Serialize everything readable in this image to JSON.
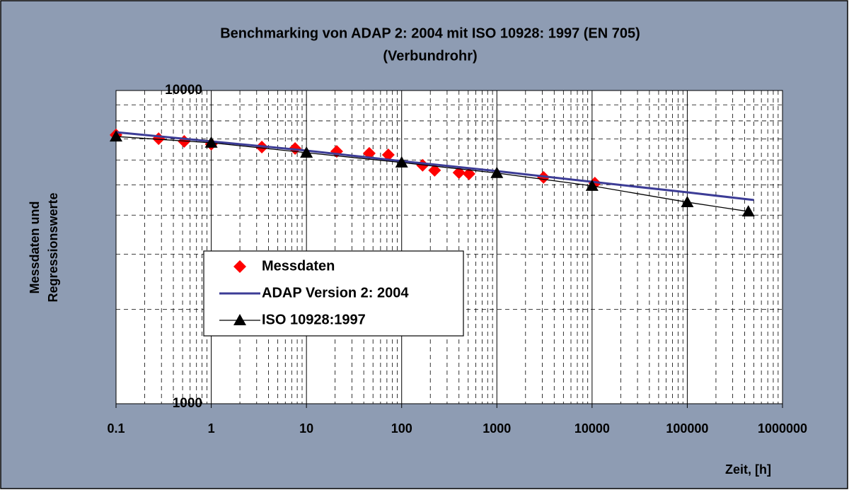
{
  "chart_data": {
    "type": "line",
    "title": "Benchmarking von ADAP 2: 2004 mit ISO 10928: 1997 (EN 705)",
    "subtitle": "(Verbundrohr)",
    "x_label": "Zeit, [h]",
    "y_label": [
      "Messdaten und",
      "Regressionswerte"
    ],
    "x_log": true,
    "y_log": true,
    "grid": true,
    "minor_grid": true,
    "legend": "center-left",
    "xlim": [
      0.1,
      1000000
    ],
    "xticks": [
      0.1,
      1,
      10,
      100,
      1000,
      10000,
      100000,
      1000000
    ],
    "ylim": [
      1000,
      10000
    ],
    "yticks": [
      1000,
      10000
    ],
    "series": [
      {
        "name": "Messdaten",
        "kind": "markers",
        "marker": "diamond",
        "color": "#ff0000",
        "x": [
          0.1,
          0.28,
          0.52,
          1,
          3.4,
          7.6,
          20.8,
          45.7,
          72.4,
          166,
          222,
          400,
          510,
          3090,
          10700
        ],
        "values": [
          7210,
          7020,
          6880,
          6740,
          6600,
          6530,
          6390,
          6300,
          6230,
          5770,
          5560,
          5470,
          5420,
          5280,
          5060
        ]
      },
      {
        "name": "ADAP Version 2: 2004",
        "kind": "line",
        "color": "#3c3c96",
        "x": [
          0.1,
          1,
          10,
          100,
          1000,
          10000,
          100000,
          500000
        ],
        "values": [
          7360,
          6880,
          6430,
          5950,
          5530,
          5110,
          4730,
          4470
        ]
      },
      {
        "name": "ISO 10928:1997",
        "kind": "line-markers",
        "marker": "triangle",
        "color": "#000000",
        "x": [
          0.1,
          1,
          10,
          100,
          1000,
          10000,
          100000,
          438000
        ],
        "values": [
          7130,
          6810,
          6330,
          5890,
          5450,
          4960,
          4400,
          4110
        ]
      }
    ]
  }
}
